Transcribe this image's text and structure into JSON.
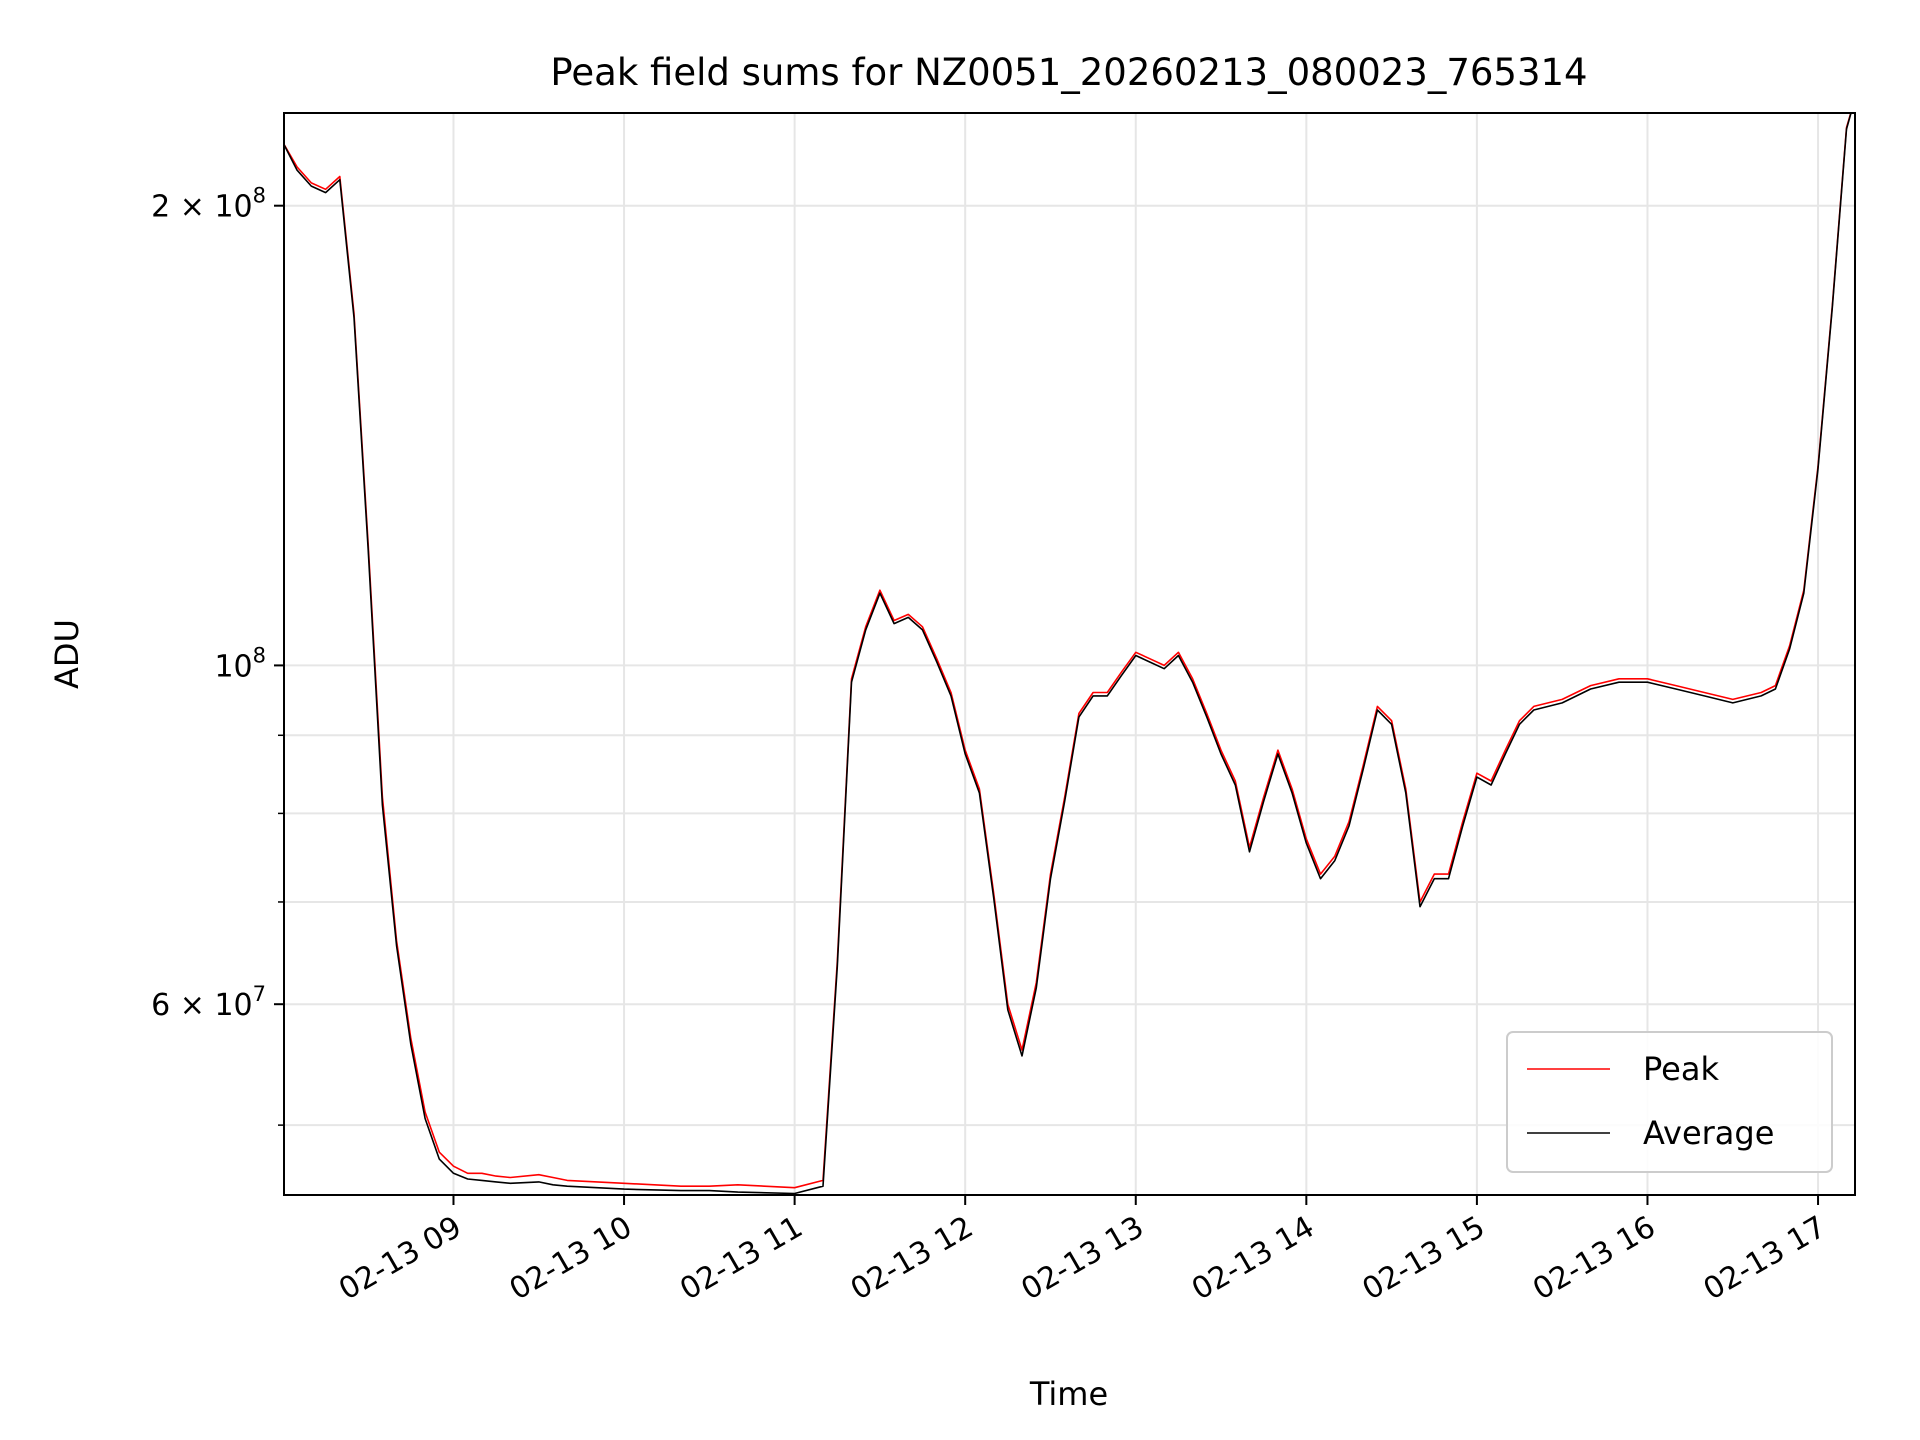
{
  "chart_data": {
    "type": "line",
    "title": "Peak field sums for NZ0051_20260213_080023_765314",
    "xlabel": "Time",
    "ylabel": "ADU",
    "yscale": "log",
    "xlim": [
      "2026-02-13 08:00:23",
      "2026-02-13 17:13:00"
    ],
    "ylim": [
      45000000,
      230000000
    ],
    "grid": true,
    "legend_position": "lower-right",
    "x_ticks": [
      {
        "t": "2026-02-13 09:00",
        "label": "02-13 09"
      },
      {
        "t": "2026-02-13 10:00",
        "label": "02-13 10"
      },
      {
        "t": "2026-02-13 11:00",
        "label": "02-13 11"
      },
      {
        "t": "2026-02-13 12:00",
        "label": "02-13 12"
      },
      {
        "t": "2026-02-13 13:00",
        "label": "02-13 13"
      },
      {
        "t": "2026-02-13 14:00",
        "label": "02-13 14"
      },
      {
        "t": "2026-02-13 15:00",
        "label": "02-13 15"
      },
      {
        "t": "2026-02-13 16:00",
        "label": "02-13 16"
      },
      {
        "t": "2026-02-13 17:00",
        "label": "02-13 17"
      }
    ],
    "y_ticks": [
      {
        "value": 60000000,
        "mantissa": "6",
        "base": "10",
        "exp": "7"
      },
      {
        "value": 100000000,
        "mantissa": "",
        "base": "10",
        "exp": "8"
      },
      {
        "value": 200000000,
        "mantissa": "2",
        "base": "10",
        "exp": "8"
      }
    ],
    "y_minor_ticks": [
      50000000,
      70000000,
      80000000,
      90000000
    ],
    "series": [
      {
        "name": "Peak",
        "color": "#ff0000",
        "x": [
          "2026-02-13 08:00",
          "2026-02-13 08:05",
          "2026-02-13 08:10",
          "2026-02-13 08:15",
          "2026-02-13 08:20",
          "2026-02-13 08:25",
          "2026-02-13 08:30",
          "2026-02-13 08:35",
          "2026-02-13 08:40",
          "2026-02-13 08:45",
          "2026-02-13 08:50",
          "2026-02-13 08:55",
          "2026-02-13 09:00",
          "2026-02-13 09:05",
          "2026-02-13 09:10",
          "2026-02-13 09:15",
          "2026-02-13 09:20",
          "2026-02-13 09:30",
          "2026-02-13 09:35",
          "2026-02-13 09:40",
          "2026-02-13 10:00",
          "2026-02-13 10:20",
          "2026-02-13 10:30",
          "2026-02-13 10:40",
          "2026-02-13 11:00",
          "2026-02-13 11:10",
          "2026-02-13 11:15",
          "2026-02-13 11:20",
          "2026-02-13 11:25",
          "2026-02-13 11:30",
          "2026-02-13 11:35",
          "2026-02-13 11:40",
          "2026-02-13 11:45",
          "2026-02-13 11:50",
          "2026-02-13 11:55",
          "2026-02-13 12:00",
          "2026-02-13 12:05",
          "2026-02-13 12:10",
          "2026-02-13 12:15",
          "2026-02-13 12:20",
          "2026-02-13 12:25",
          "2026-02-13 12:30",
          "2026-02-13 12:35",
          "2026-02-13 12:40",
          "2026-02-13 12:45",
          "2026-02-13 12:50",
          "2026-02-13 12:55",
          "2026-02-13 13:00",
          "2026-02-13 13:05",
          "2026-02-13 13:10",
          "2026-02-13 13:15",
          "2026-02-13 13:20",
          "2026-02-13 13:25",
          "2026-02-13 13:30",
          "2026-02-13 13:35",
          "2026-02-13 13:40",
          "2026-02-13 13:45",
          "2026-02-13 13:50",
          "2026-02-13 13:55",
          "2026-02-13 14:00",
          "2026-02-13 14:05",
          "2026-02-13 14:10",
          "2026-02-13 14:15",
          "2026-02-13 14:20",
          "2026-02-13 14:25",
          "2026-02-13 14:30",
          "2026-02-13 14:35",
          "2026-02-13 14:40",
          "2026-02-13 14:45",
          "2026-02-13 14:50",
          "2026-02-13 14:55",
          "2026-02-13 15:00",
          "2026-02-13 15:05",
          "2026-02-13 15:10",
          "2026-02-13 15:15",
          "2026-02-13 15:20",
          "2026-02-13 15:30",
          "2026-02-13 15:40",
          "2026-02-13 15:50",
          "2026-02-13 16:00",
          "2026-02-13 16:10",
          "2026-02-13 16:20",
          "2026-02-13 16:30",
          "2026-02-13 16:40",
          "2026-02-13 16:45",
          "2026-02-13 16:50",
          "2026-02-13 16:55",
          "2026-02-13 17:00",
          "2026-02-13 17:05",
          "2026-02-13 17:10",
          "2026-02-13 17:13"
        ],
        "values": [
          220000000,
          212000000,
          207000000,
          205000000,
          209000000,
          170000000,
          120000000,
          82000000,
          66000000,
          57000000,
          51000000,
          48000000,
          47000000,
          46500000,
          46500000,
          46300000,
          46200000,
          46400000,
          46200000,
          46000000,
          45800000,
          45600000,
          45600000,
          45700000,
          45500000,
          46000000,
          64000000,
          98000000,
          106000000,
          112000000,
          107000000,
          108000000,
          106000000,
          101000000,
          96000000,
          88000000,
          83000000,
          71000000,
          60000000,
          56000000,
          62000000,
          73000000,
          82000000,
          93000000,
          96000000,
          96000000,
          99000000,
          102000000,
          101000000,
          100000000,
          102000000,
          98000000,
          93000000,
          88000000,
          84000000,
          76000000,
          82000000,
          88000000,
          83000000,
          77000000,
          73000000,
          75000000,
          79000000,
          86000000,
          94000000,
          92000000,
          83000000,
          70000000,
          73000000,
          73000000,
          79000000,
          85000000,
          84000000,
          88000000,
          92000000,
          94000000,
          95000000,
          97000000,
          98000000,
          98000000,
          97000000,
          96000000,
          95000000,
          96000000,
          97000000,
          103000000,
          112000000,
          135000000,
          172000000,
          225000000,
          235000000
        ]
      },
      {
        "name": "Average",
        "color": "#000000",
        "x": [
          "2026-02-13 08:00",
          "2026-02-13 08:05",
          "2026-02-13 08:10",
          "2026-02-13 08:15",
          "2026-02-13 08:20",
          "2026-02-13 08:25",
          "2026-02-13 08:30",
          "2026-02-13 08:35",
          "2026-02-13 08:40",
          "2026-02-13 08:45",
          "2026-02-13 08:50",
          "2026-02-13 08:55",
          "2026-02-13 09:00",
          "2026-02-13 09:05",
          "2026-02-13 09:10",
          "2026-02-13 09:15",
          "2026-02-13 09:20",
          "2026-02-13 09:30",
          "2026-02-13 09:35",
          "2026-02-13 09:40",
          "2026-02-13 10:00",
          "2026-02-13 10:20",
          "2026-02-13 10:30",
          "2026-02-13 10:40",
          "2026-02-13 11:00",
          "2026-02-13 11:10",
          "2026-02-13 11:15",
          "2026-02-13 11:20",
          "2026-02-13 11:25",
          "2026-02-13 11:30",
          "2026-02-13 11:35",
          "2026-02-13 11:40",
          "2026-02-13 11:45",
          "2026-02-13 11:50",
          "2026-02-13 11:55",
          "2026-02-13 12:00",
          "2026-02-13 12:05",
          "2026-02-13 12:10",
          "2026-02-13 12:15",
          "2026-02-13 12:20",
          "2026-02-13 12:25",
          "2026-02-13 12:30",
          "2026-02-13 12:35",
          "2026-02-13 12:40",
          "2026-02-13 12:45",
          "2026-02-13 12:50",
          "2026-02-13 12:55",
          "2026-02-13 13:00",
          "2026-02-13 13:05",
          "2026-02-13 13:10",
          "2026-02-13 13:15",
          "2026-02-13 13:20",
          "2026-02-13 13:25",
          "2026-02-13 13:30",
          "2026-02-13 13:35",
          "2026-02-13 13:40",
          "2026-02-13 13:45",
          "2026-02-13 13:50",
          "2026-02-13 13:55",
          "2026-02-13 14:00",
          "2026-02-13 14:05",
          "2026-02-13 14:10",
          "2026-02-13 14:15",
          "2026-02-13 14:20",
          "2026-02-13 14:25",
          "2026-02-13 14:30",
          "2026-02-13 14:35",
          "2026-02-13 14:40",
          "2026-02-13 14:45",
          "2026-02-13 14:50",
          "2026-02-13 14:55",
          "2026-02-13 15:00",
          "2026-02-13 15:05",
          "2026-02-13 15:10",
          "2026-02-13 15:15",
          "2026-02-13 15:20",
          "2026-02-13 15:30",
          "2026-02-13 15:40",
          "2026-02-13 15:50",
          "2026-02-13 16:00",
          "2026-02-13 16:10",
          "2026-02-13 16:20",
          "2026-02-13 16:30",
          "2026-02-13 16:40",
          "2026-02-13 16:45",
          "2026-02-13 16:50",
          "2026-02-13 16:55",
          "2026-02-13 17:00",
          "2026-02-13 17:05",
          "2026-02-13 17:10",
          "2026-02-13 17:13"
        ],
        "values": [
          220000000,
          211000000,
          206000000,
          204000000,
          208000000,
          169000000,
          119000000,
          81000000,
          65500000,
          56500000,
          50500000,
          47500000,
          46500000,
          46100000,
          46000000,
          45900000,
          45800000,
          45900000,
          45700000,
          45600000,
          45400000,
          45300000,
          45300000,
          45200000,
          45100000,
          45600000,
          63500000,
          97500000,
          105500000,
          111500000,
          106500000,
          107500000,
          105500000,
          100500000,
          95500000,
          87500000,
          82500000,
          70500000,
          59500000,
          55500000,
          61500000,
          72500000,
          81500000,
          92500000,
          95500000,
          95500000,
          98500000,
          101500000,
          100500000,
          99500000,
          101500000,
          97500000,
          92500000,
          87500000,
          83500000,
          75500000,
          81500000,
          87500000,
          82500000,
          76500000,
          72500000,
          74500000,
          78500000,
          85500000,
          93500000,
          91500000,
          82500000,
          69500000,
          72500000,
          72500000,
          78500000,
          84500000,
          83500000,
          87500000,
          91500000,
          93500000,
          94500000,
          96500000,
          97500000,
          97500000,
          96500000,
          95500000,
          94500000,
          95500000,
          96500000,
          102500000,
          111500000,
          134500000,
          171500000,
          224500000,
          235000000
        ]
      }
    ]
  }
}
